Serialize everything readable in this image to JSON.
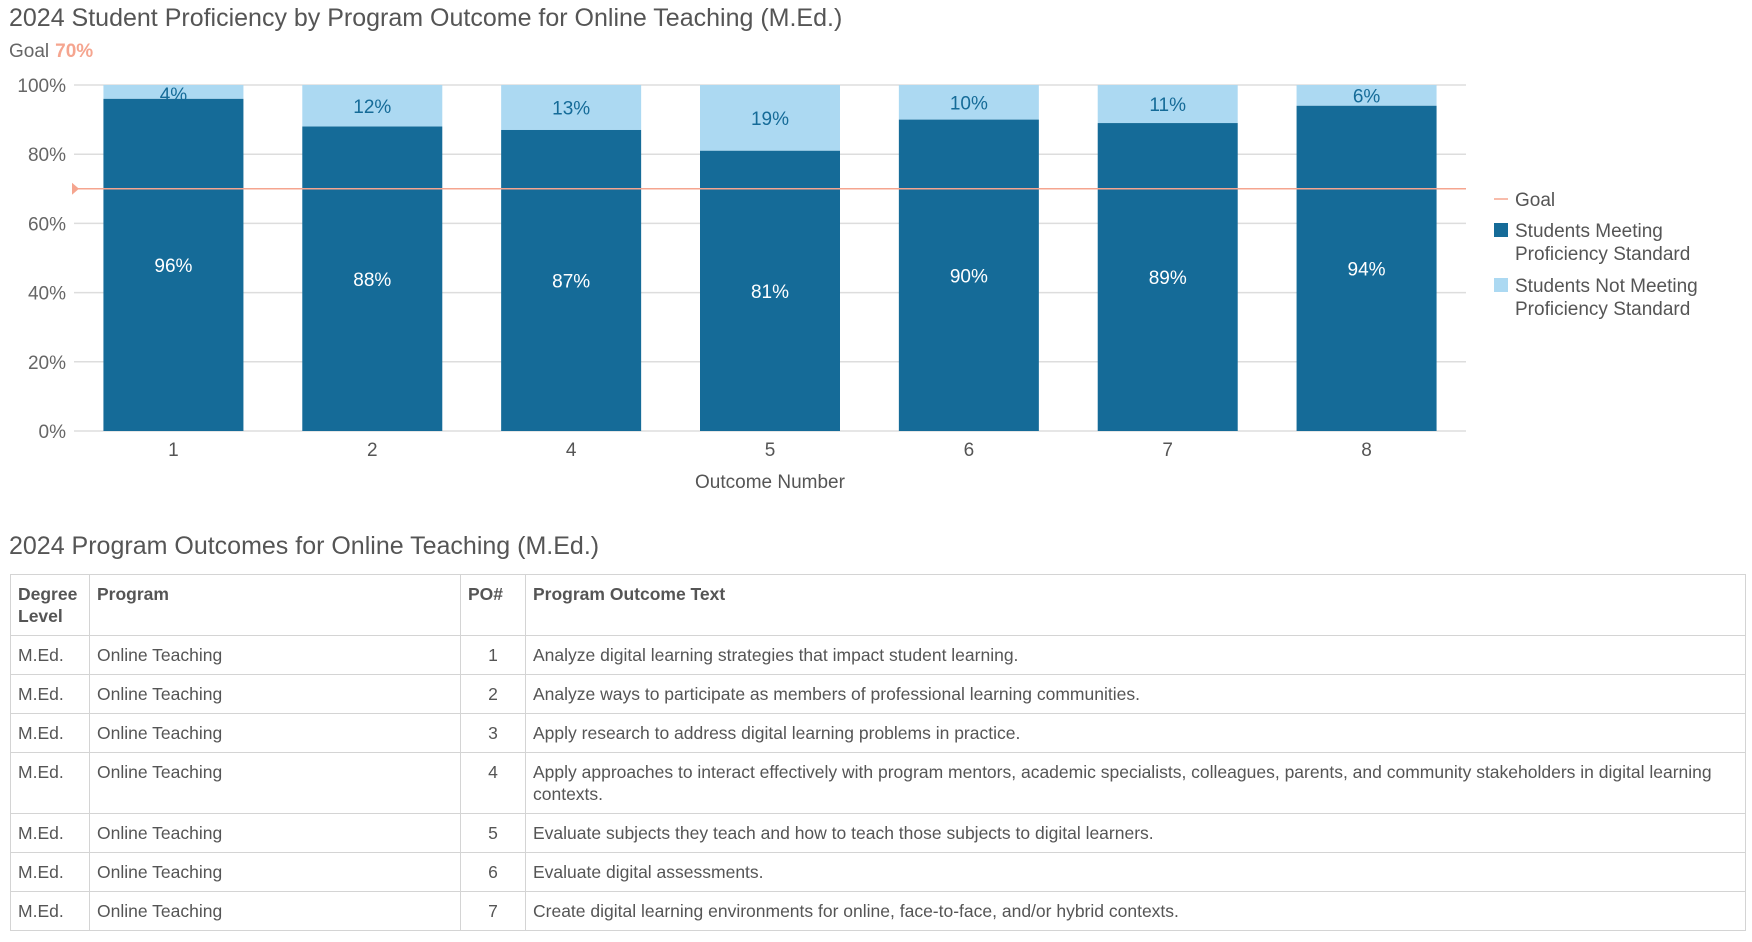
{
  "chart_data": {
    "type": "bar",
    "stacked": true,
    "title": "2024 Student Proficiency by Program Outcome for Online Teaching (M.Ed.)",
    "goal_label": "Goal",
    "goal_value": "70%",
    "goal": 70,
    "xlabel": "Outcome Number",
    "ylabel": "",
    "ylim": [
      0,
      100
    ],
    "yticks": [
      "0%",
      "20%",
      "40%",
      "60%",
      "80%",
      "100%"
    ],
    "grid": true,
    "legend_position": "right",
    "categories": [
      "1",
      "2",
      "4",
      "5",
      "6",
      "7",
      "8"
    ],
    "series": [
      {
        "name": "Students Meeting Proficiency Standard",
        "values": [
          96,
          88,
          87,
          81,
          90,
          89,
          94
        ],
        "color": "#156b98"
      },
      {
        "name": "Students Not Meeting Proficiency Standard",
        "values": [
          4,
          12,
          13,
          19,
          10,
          11,
          6
        ],
        "color": "#acd9f2"
      }
    ],
    "legend": {
      "goal": "Goal",
      "meeting": [
        "Students Meeting",
        "Proficiency Standard"
      ],
      "not_meeting": [
        "Students Not Meeting",
        "Proficiency Standard"
      ]
    },
    "goal_color": "#f5a58f"
  },
  "table": {
    "title": "2024 Program Outcomes for Online Teaching (M.Ed.)",
    "headers": [
      "Degree Level",
      "Program",
      "PO#",
      "Program Outcome Text"
    ],
    "rows": [
      [
        "M.Ed.",
        "Online Teaching",
        "1",
        "Analyze digital learning strategies that impact student learning."
      ],
      [
        "M.Ed.",
        "Online Teaching",
        "2",
        "Analyze ways to participate as members of professional learning communities."
      ],
      [
        "M.Ed.",
        "Online Teaching",
        "3",
        "Apply research to address digital learning problems in practice."
      ],
      [
        "M.Ed.",
        "Online Teaching",
        "4",
        "Apply approaches to interact effectively with program mentors, academic specialists, colleagues, parents, and community stakeholders in digital learning contexts."
      ],
      [
        "M.Ed.",
        "Online Teaching",
        "5",
        "Evaluate subjects they teach and how to teach those subjects to digital learners."
      ],
      [
        "M.Ed.",
        "Online Teaching",
        "6",
        "Evaluate digital assessments."
      ],
      [
        "M.Ed.",
        "Online Teaching",
        "7",
        "Create digital learning environments for online, face-to-face, and/or hybrid contexts."
      ]
    ]
  }
}
